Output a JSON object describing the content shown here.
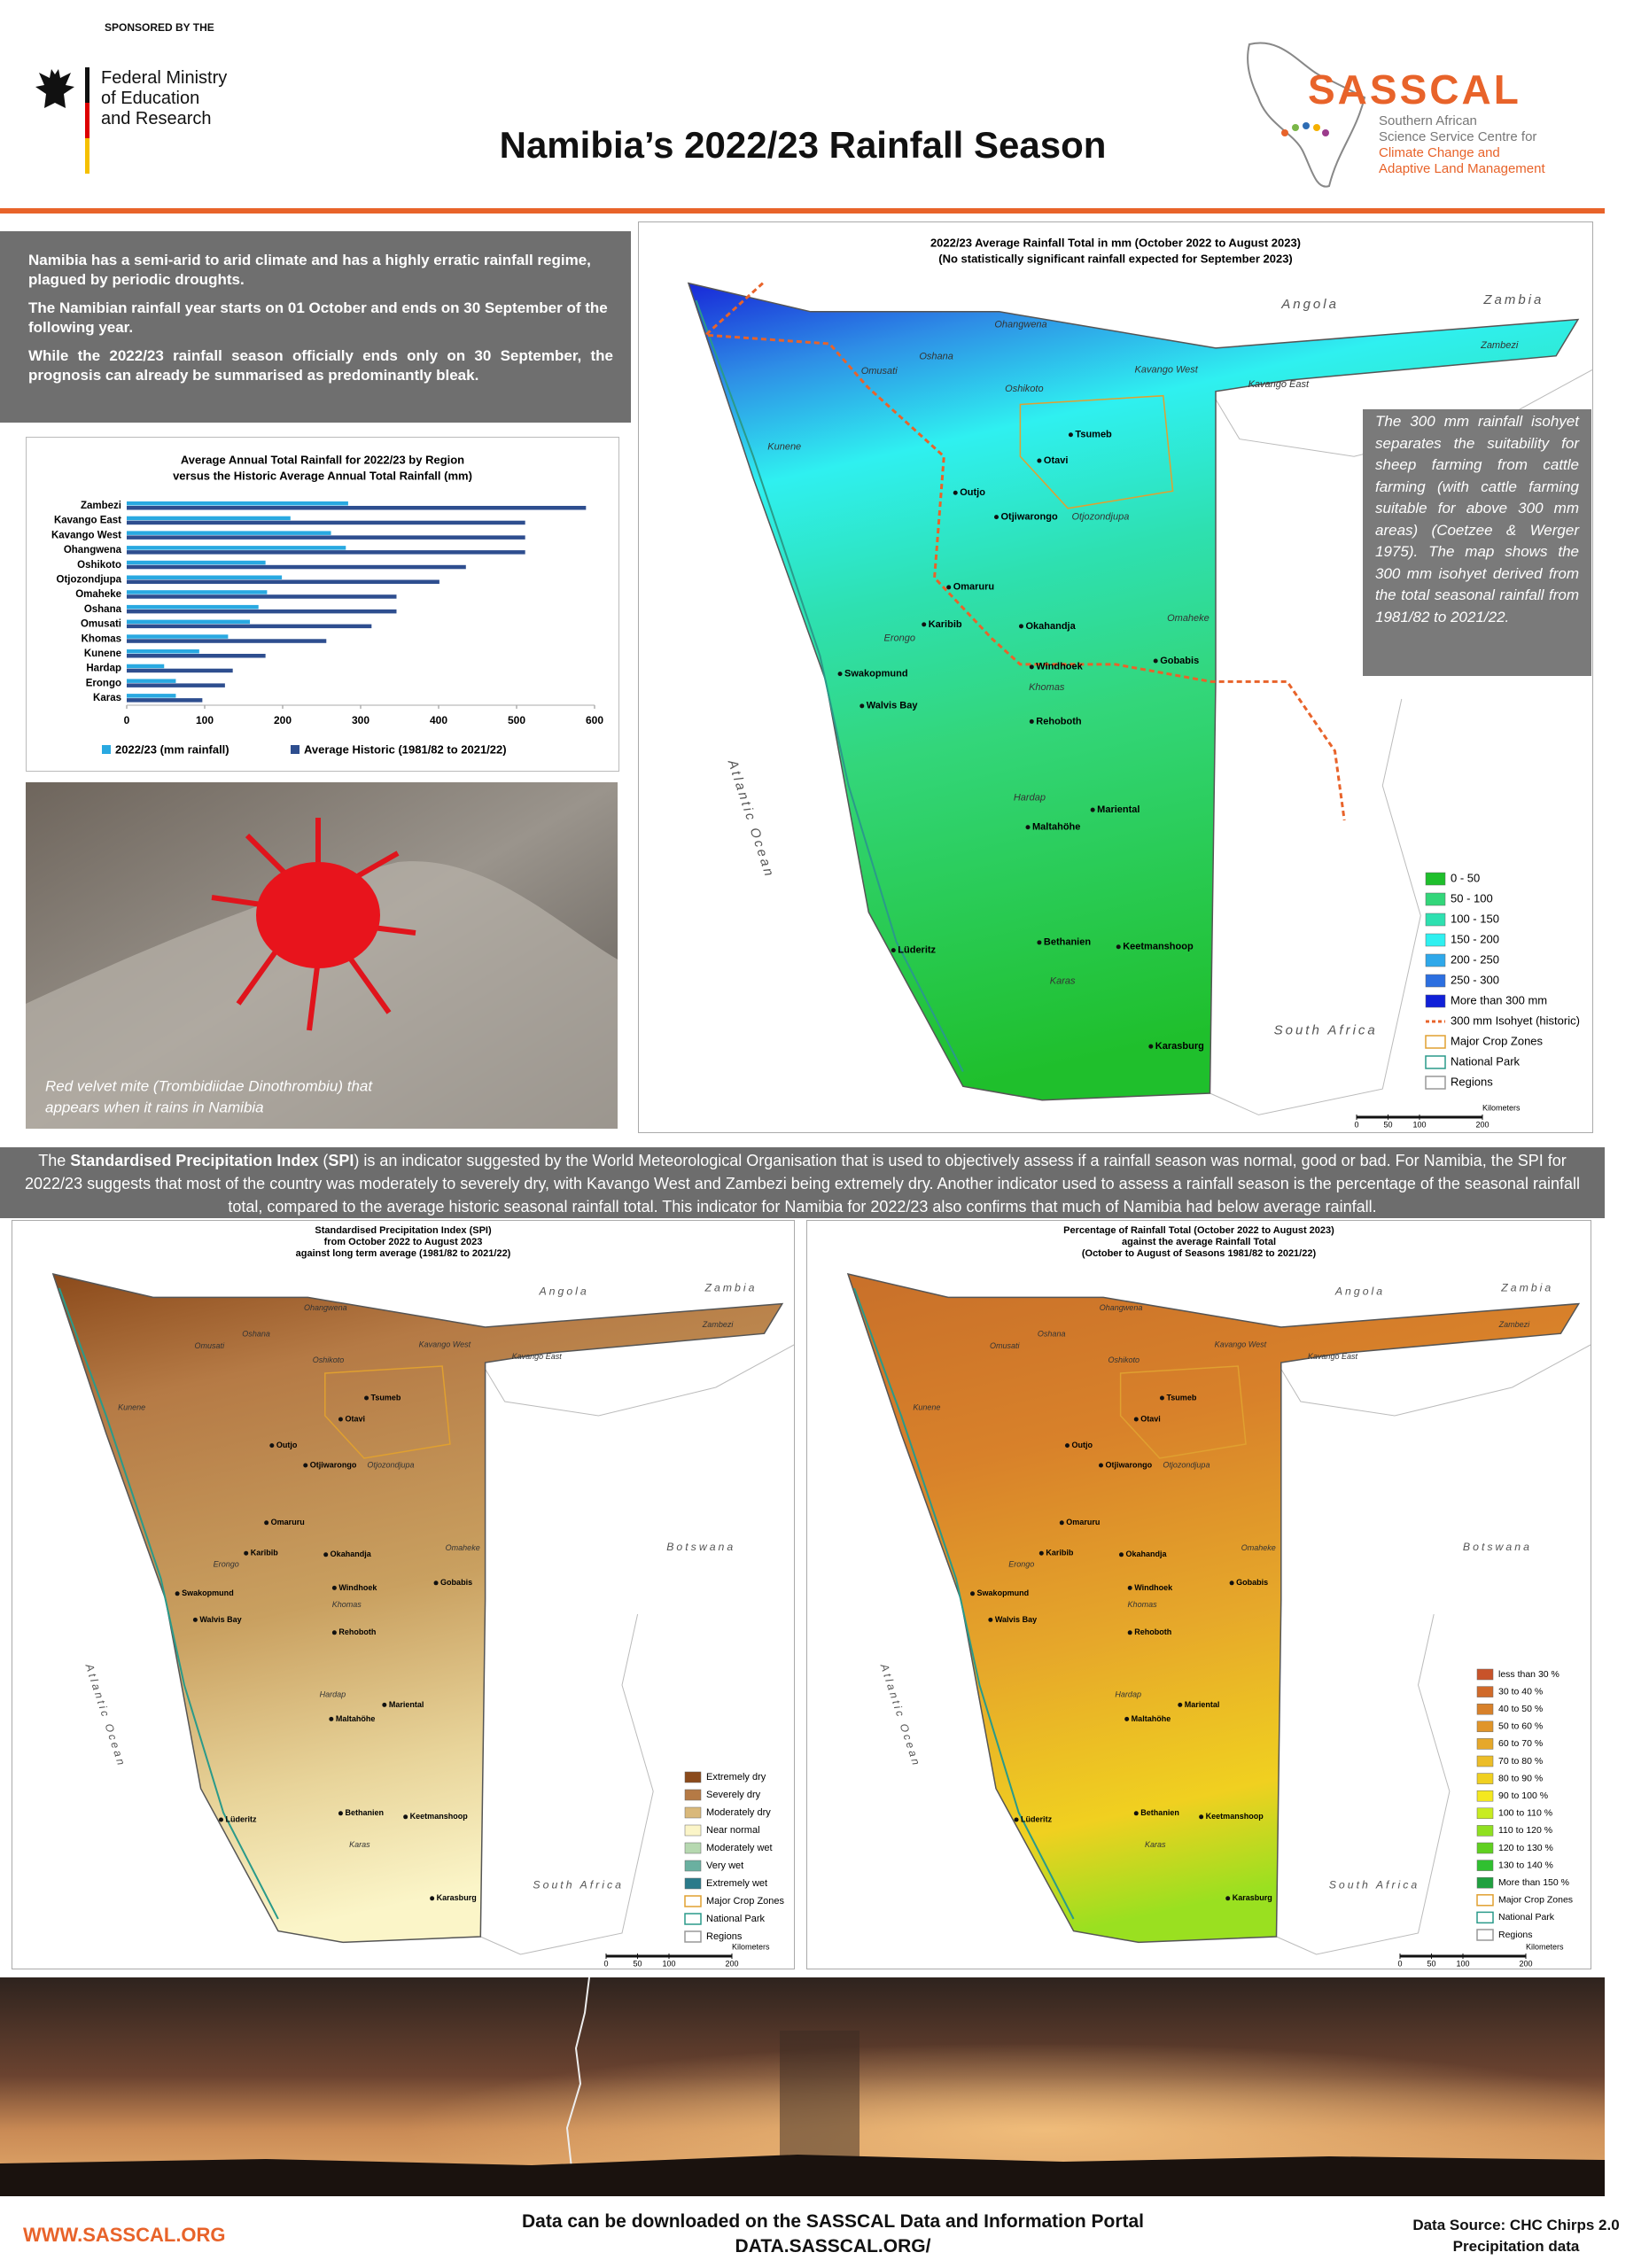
{
  "header": {
    "sponsor": "SPONSORED BY THE",
    "ministry_lines": [
      "Federal Ministry",
      "of Education",
      "and Research"
    ],
    "title": "Namibia’s 2022/23 Rainfall Season",
    "logo": "SASSCAL",
    "logo_lines": [
      "Southern African",
      "Science Service Centre for",
      "Climate Change and",
      "Adaptive Land Management"
    ]
  },
  "intro": [
    "Namibia has a semi-arid to arid climate and has a highly erratic rainfall regime, plagued by periodic droughts.",
    "The Namibian rainfall year starts on 01 October and ends on 30 September of the following year.",
    "While the 2022/23 rainfall season officially ends only on 30 September, the prognosis can already be summarised as predominantly bleak."
  ],
  "chart_data": {
    "type": "bar",
    "title": "Average Annual Total Rainfall for 2022/23 by Region",
    "subtitle": "versus the Historic Average Annual Total Rainfall (mm)",
    "categories": [
      "Zambezi",
      "Kavango East",
      "Kavango West",
      "Ohangwena",
      "Oshikoto",
      "Otjozondjupa",
      "Omaheke",
      "Oshana",
      "Omusati",
      "Khomas",
      "Kunene",
      "Hardap",
      "Erongo",
      "Karas"
    ],
    "series": [
      {
        "name": "2022/23 (mm rainfall)",
        "color": "#29a9e1",
        "values": [
          284,
          210,
          262,
          281,
          178,
          199,
          180,
          169,
          158,
          130,
          93,
          48,
          63,
          63
        ]
      },
      {
        "name": "Average Historic (1981/82 to 2021/22)",
        "color": "#2e4e8f",
        "values": [
          589,
          511,
          511,
          511,
          435,
          401,
          346,
          346,
          314,
          256,
          178,
          136,
          126,
          97
        ]
      }
    ],
    "xlim": [
      0,
      600
    ],
    "xticks": [
      0,
      100,
      200,
      300,
      400,
      500,
      600
    ],
    "legend": "bottom"
  },
  "photo_caption": [
    "Red velvet mite (Trombidiidae Dinothrombiu) that",
    "appears when it rains in Namibia"
  ],
  "places": [
    "Angola",
    "Zambia",
    "Ohangwena",
    "Oshana",
    "Omusati",
    "Oshikoto",
    "Kavango West",
    "Kavango East",
    "Zambezi",
    "Kunene",
    "Tsumeb",
    "Otavi",
    "Outjo",
    "Otjiwarongo",
    "Otjozondjupa",
    "Omaruru",
    "Karibib",
    "Okahandja",
    "Omaheke",
    "Erongo",
    "Swakopmund",
    "Walvis Bay",
    "Windhoek",
    "Khomas",
    "Gobabis",
    "Rehoboth",
    "Hardap",
    "Mariental",
    "Maltahöhe",
    "Bethanien",
    "Keetmanshoop",
    "Lüderitz",
    "Karas",
    "Karasburg",
    "South Africa",
    "Atlantic Ocean",
    "Botswana"
  ],
  "scale_bar": {
    "unit": "Kilometers",
    "ticks": [
      0,
      50,
      100,
      200
    ]
  },
  "main_map": {
    "title_lines": [
      "2022/23 Average Rainfall Total in mm (October 2022 to August 2023)",
      "(No statistically significant rainfall expected for September 2023)"
    ],
    "legend": [
      {
        "label": "0 - 50",
        "color": "#1fbf2c",
        "swatch": "fill"
      },
      {
        "label": "50 - 100",
        "color": "#33d67a",
        "swatch": "fill"
      },
      {
        "label": "100 - 150",
        "color": "#2ee0b0",
        "swatch": "fill"
      },
      {
        "label": "150 - 200",
        "color": "#2ff0f0",
        "swatch": "fill"
      },
      {
        "label": "200 - 250",
        "color": "#2fa8ea",
        "swatch": "fill"
      },
      {
        "label": "250 - 300",
        "color": "#2c6fe0",
        "swatch": "fill"
      },
      {
        "label": "More than 300 mm",
        "color": "#1020d8",
        "swatch": "fill"
      },
      {
        "label": "300 mm Isohyet (historic)",
        "color": "#e8632a",
        "swatch": "dash"
      },
      {
        "label": "Major Crop Zones",
        "color": "#e0a030",
        "swatch": "outline"
      },
      {
        "label": "National Park",
        "color": "#2a9a8a",
        "swatch": "outline"
      },
      {
        "label": "Regions",
        "color": "#999999",
        "swatch": "outline"
      }
    ]
  },
  "note": "The 300 mm rainfall isohyet separates the suitability for sheep farming from cattle farming (with cattle farming suitable for above 300 mm areas) (Coetzee & Werger 1975). The map shows the 300 mm isohyet derived from the total seasonal rainfall from 1981/82 to 2021/22.",
  "spi_text": {
    "lead": "The ",
    "name": "Standardised Precipitation Index",
    "open": " (",
    "abbr": "SPI",
    "rest": ") is an indicator suggested by the World Meteorological Organisation that is used to objectively assess if a rainfall season was normal, good or bad. For Namibia, the SPI for 2022/23 suggests that most of the country was moderately to severely dry, with Kavango West and Zambezi being extremely dry.  Another indicator used to assess a rainfall season is the percentage of the seasonal rainfall total, compared to the average historic seasonal rainfall total. This indicator for Namibia for 2022/23 also confirms that much of Namibia had below average rainfall."
  },
  "spi_map": {
    "title_lines": [
      "Standardised Precipitation Index (SPI)",
      "from October 2022 to August 2023",
      "against long term average (1981/82 to 2021/22)"
    ],
    "legend": [
      {
        "label": "Extremely dry",
        "color": "#8b4a1b",
        "swatch": "fill"
      },
      {
        "label": "Severely dry",
        "color": "#b57a45",
        "swatch": "fill"
      },
      {
        "label": "Moderately dry",
        "color": "#d9b87a",
        "swatch": "fill"
      },
      {
        "label": "Near normal",
        "color": "#fbf5c8",
        "swatch": "fill"
      },
      {
        "label": "Moderately wet",
        "color": "#b6d8b0",
        "swatch": "fill"
      },
      {
        "label": "Very wet",
        "color": "#6ab0a0",
        "swatch": "fill"
      },
      {
        "label": "Extremely wet",
        "color": "#2a7a8a",
        "swatch": "fill"
      },
      {
        "label": "Major Crop Zones",
        "color": "#e0a030",
        "swatch": "outline"
      },
      {
        "label": "National Park",
        "color": "#2a9a8a",
        "swatch": "outline"
      },
      {
        "label": "Regions",
        "color": "#999999",
        "swatch": "outline"
      }
    ]
  },
  "pct_map": {
    "title_lines": [
      "Percentage of Rainfall Total (October 2022 to August 2023)",
      "against the average Rainfall Total",
      "(October to August of Seasons 1981/82 to 2021/22)"
    ],
    "legend": [
      {
        "label": "less than 30 %",
        "color": "#c8532a",
        "swatch": "fill"
      },
      {
        "label": "30 to 40 %",
        "color": "#d06a2a",
        "swatch": "fill"
      },
      {
        "label": "40 to 50 %",
        "color": "#d8812a",
        "swatch": "fill"
      },
      {
        "label": "50 to 60 %",
        "color": "#e0952a",
        "swatch": "fill"
      },
      {
        "label": "60 to 70 %",
        "color": "#e6a82a",
        "swatch": "fill"
      },
      {
        "label": "70 to 80 %",
        "color": "#ecbd28",
        "swatch": "fill"
      },
      {
        "label": "80 to 90 %",
        "color": "#f0d020",
        "swatch": "fill"
      },
      {
        "label": "90 to 100 %",
        "color": "#f4e820",
        "swatch": "fill"
      },
      {
        "label": "100 to 110 %",
        "color": "#c8ec20",
        "swatch": "fill"
      },
      {
        "label": "110 to 120 %",
        "color": "#90e020",
        "swatch": "fill"
      },
      {
        "label": "120 to 130 %",
        "color": "#60d020",
        "swatch": "fill"
      },
      {
        "label": "130 to 140 %",
        "color": "#30c030",
        "swatch": "fill"
      },
      {
        "label": "More than 150 %",
        "color": "#20a040",
        "swatch": "fill"
      },
      {
        "label": "Major Crop Zones",
        "color": "#e0a030",
        "swatch": "outline"
      },
      {
        "label": "National Park",
        "color": "#2a9a8a",
        "swatch": "outline"
      },
      {
        "label": "Regions",
        "color": "#999999",
        "swatch": "outline"
      }
    ]
  },
  "footer": {
    "website": "WWW.SASSCAL.ORG",
    "portal_lines": [
      "Data can be downloaded on the SASSCAL Data and Information Portal",
      "DATA.SASSCAL.ORG/"
    ],
    "source_lines": [
      "Data Source: CHC Chirps 2.0",
      "Precipitation data"
    ]
  }
}
